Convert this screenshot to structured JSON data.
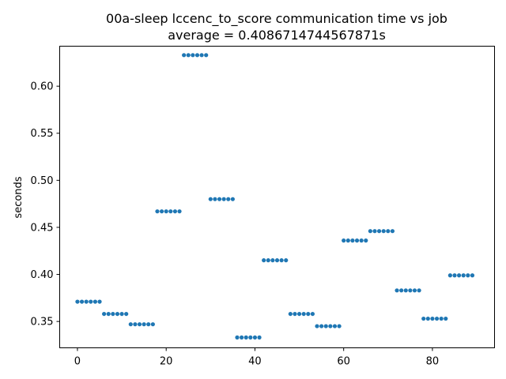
{
  "chart_data": {
    "type": "scatter",
    "title": "00a-sleep lccenc_to_score communication time vs job",
    "subtitle": "average = 0.4086714744567871s",
    "xlabel": "",
    "ylabel": "seconds",
    "xlim": [
      -4,
      94
    ],
    "ylim": [
      0.322,
      0.6425
    ],
    "xticks": [
      0,
      20,
      40,
      60,
      80
    ],
    "yticks": [
      0.35,
      0.4,
      0.45,
      0.5,
      0.55,
      0.6
    ],
    "ytick_labels": [
      "0.35",
      "0.40",
      "0.45",
      "0.50",
      "0.55",
      "0.60"
    ],
    "marker_color": "#1f77b4",
    "grid": false,
    "series": [
      {
        "groups": [
          {
            "x_start": 0,
            "count": 6,
            "y": 0.371
          },
          {
            "x_start": 6,
            "count": 6,
            "y": 0.358
          },
          {
            "x_start": 12,
            "count": 6,
            "y": 0.347
          },
          {
            "x_start": 18,
            "count": 6,
            "y": 0.467
          },
          {
            "x_start": 24,
            "count": 6,
            "y": 0.633
          },
          {
            "x_start": 30,
            "count": 6,
            "y": 0.48
          },
          {
            "x_start": 36,
            "count": 6,
            "y": 0.333
          },
          {
            "x_start": 42,
            "count": 6,
            "y": 0.415
          },
          {
            "x_start": 48,
            "count": 6,
            "y": 0.358
          },
          {
            "x_start": 54,
            "count": 6,
            "y": 0.345
          },
          {
            "x_start": 60,
            "count": 6,
            "y": 0.436
          },
          {
            "x_start": 66,
            "count": 6,
            "y": 0.446
          },
          {
            "x_start": 72,
            "count": 6,
            "y": 0.383
          },
          {
            "x_start": 78,
            "count": 6,
            "y": 0.353
          },
          {
            "x_start": 84,
            "count": 6,
            "y": 0.399
          }
        ]
      }
    ]
  }
}
